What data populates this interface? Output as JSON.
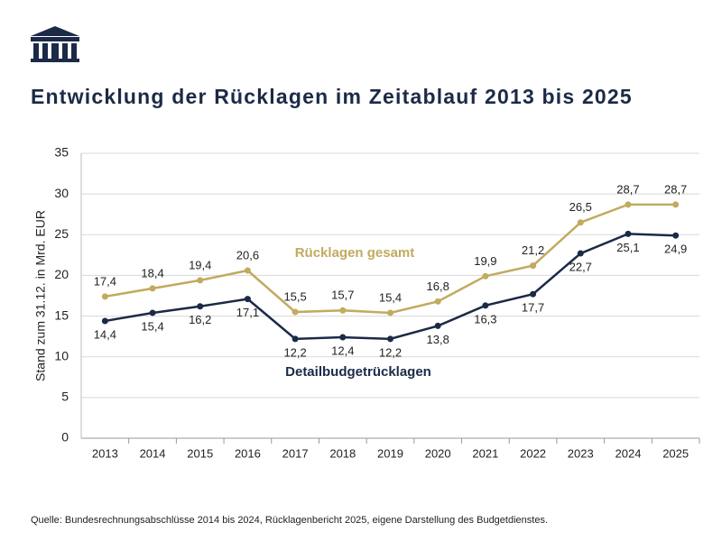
{
  "chart_data": {
    "type": "line",
    "title": "Entwicklung der Rücklagen im Zeitablauf 2013 bis 2025",
    "y_label": "Stand zum 31.12. in Mrd. EUR",
    "source": "Quelle: Bundesrechnungsabschlüsse 2014 bis 2024, Rücklagenbericht 2025, eigene Darstellung des Budgetdienstes.",
    "categories": [
      "2013",
      "2014",
      "2015",
      "2016",
      "2017",
      "2018",
      "2019",
      "2020",
      "2021",
      "2022",
      "2023",
      "2024",
      "2025"
    ],
    "ylim": [
      0,
      35
    ],
    "yticks": [
      0,
      5,
      10,
      15,
      20,
      25,
      30,
      35
    ],
    "grid": true,
    "series": [
      {
        "name": "Rücklagen gesamt",
        "color": "#c2aa5f",
        "values": [
          17.4,
          18.4,
          19.4,
          20.6,
          15.5,
          15.7,
          15.4,
          16.8,
          19.9,
          21.2,
          26.5,
          28.7,
          28.7
        ],
        "value_labels": [
          "17,4",
          "18,4",
          "19,4",
          "20,6",
          "15,5",
          "15,7",
          "15,4",
          "16,8",
          "19,9",
          "21,2",
          "26,5",
          "28,7",
          "28,7"
        ]
      },
      {
        "name": "Detailbudgetrücklagen",
        "color": "#1b2a47",
        "values": [
          14.4,
          15.4,
          16.2,
          17.1,
          12.2,
          12.4,
          12.2,
          13.8,
          16.3,
          17.7,
          22.7,
          25.1,
          24.9
        ],
        "value_labels": [
          "14,4",
          "15,4",
          "16,2",
          "17,1",
          "12,2",
          "12,4",
          "12,2",
          "13,8",
          "16,3",
          "17,7",
          "22,7",
          "25,1",
          "24,9"
        ]
      }
    ]
  }
}
